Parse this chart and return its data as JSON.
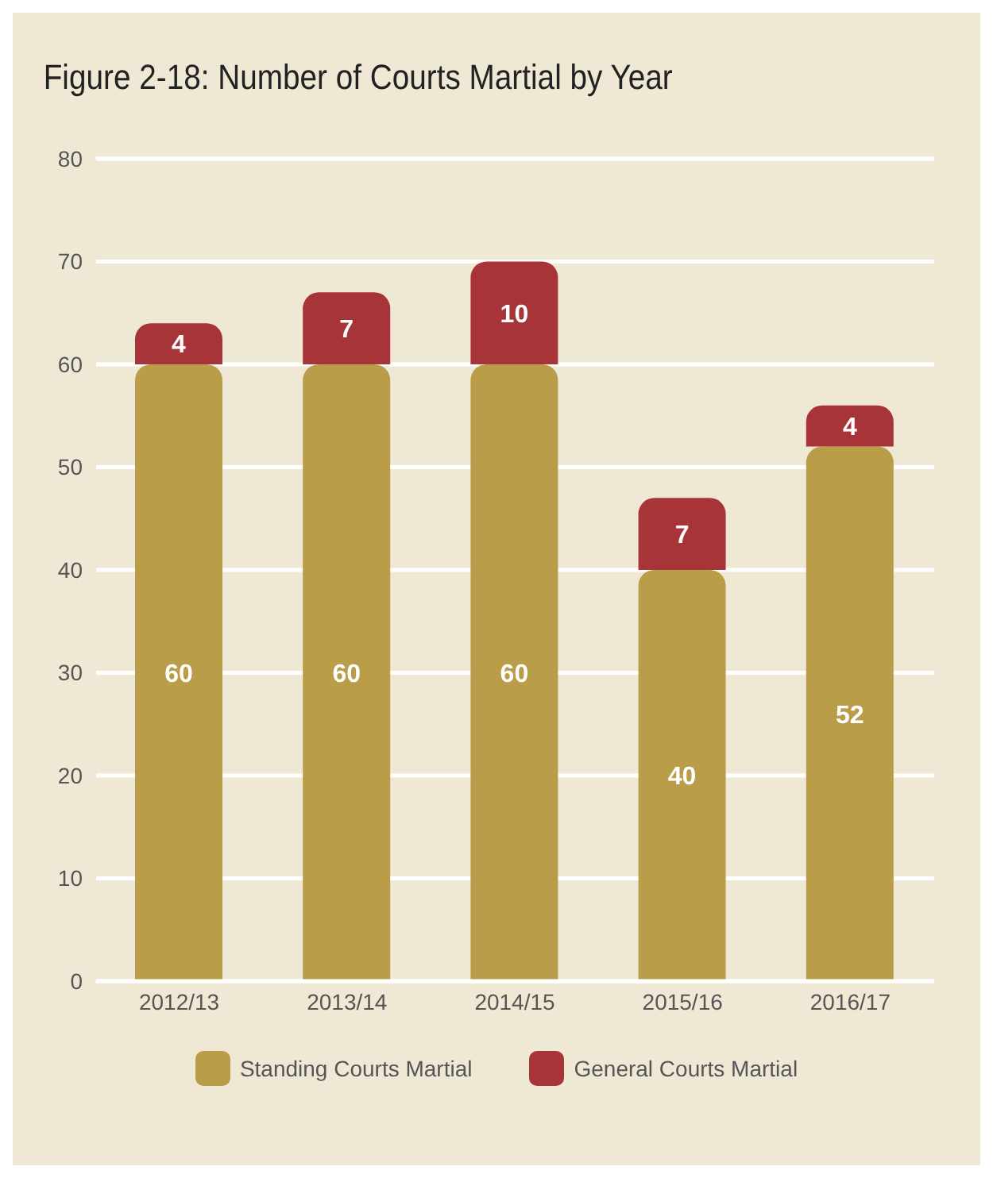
{
  "chart_data": {
    "type": "bar",
    "title": "Figure 2-18: Number of Courts Martial by Year",
    "categories": [
      "2012/13",
      "2013/14",
      "2014/15",
      "2015/16",
      "2016/17"
    ],
    "series": [
      {
        "name": "Standing Courts Martial",
        "color": "#b99d48",
        "values": [
          60,
          60,
          60,
          40,
          52
        ]
      },
      {
        "name": "General Courts Martial",
        "color": "#a73438",
        "values": [
          4,
          7,
          10,
          7,
          4
        ]
      }
    ],
    "stacked": true,
    "ylim": [
      0,
      80
    ],
    "yticks": [
      0,
      10,
      20,
      30,
      40,
      50,
      60,
      70,
      80
    ],
    "grid": "y",
    "legend": "bottom",
    "data_labels": true
  }
}
